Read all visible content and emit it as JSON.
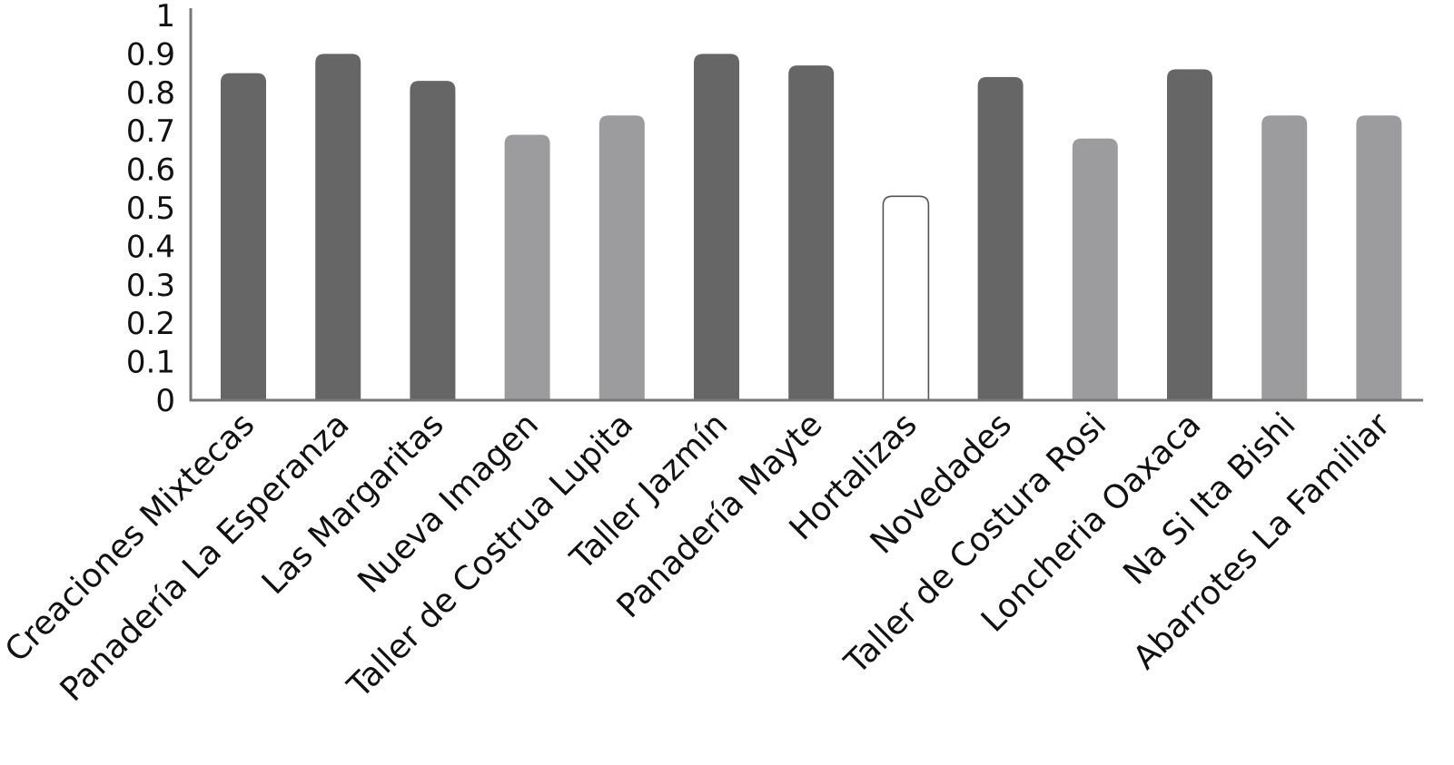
{
  "chart_data": {
    "type": "bar",
    "title": "",
    "xlabel": "",
    "ylabel": "",
    "ylim": [
      0,
      1
    ],
    "yticks": [
      "0",
      "0.1",
      "0.2",
      "0.3",
      "0.4",
      "0.5",
      "0.6",
      "0.7",
      "0.8",
      "0.9",
      "1"
    ],
    "categories": [
      "Creaciones Mixtecas",
      "Panadería La Esperanza",
      "Las Margaritas",
      "Nueva Imagen",
      "Taller de Costrua Lupita",
      "Taller Jazmín",
      "Panadería Mayte",
      "Hortalizas",
      "Novedades",
      "Taller de Costura Rosi",
      "Loncheria Oaxaca",
      "Na Si Ita Bishi",
      "Abarrotes La Familiar"
    ],
    "values": [
      0.85,
      0.9,
      0.83,
      0.69,
      0.74,
      0.9,
      0.87,
      0.53,
      0.84,
      0.68,
      0.86,
      0.74,
      0.74
    ],
    "bar_colors": [
      "#666666",
      "#666666",
      "#666666",
      "#9c9c9f",
      "#9c9c9f",
      "#666666",
      "#666666",
      "#ffffff",
      "#666666",
      "#9c9c9f",
      "#666666",
      "#9c9c9f",
      "#9c9c9f"
    ],
    "grid": false,
    "legend": "none"
  },
  "colors": {
    "dark_bar": "#666666",
    "light_bar": "#9c9c9f",
    "outline_bar": "#ffffff",
    "axis": "#777777",
    "text": "#111111"
  }
}
